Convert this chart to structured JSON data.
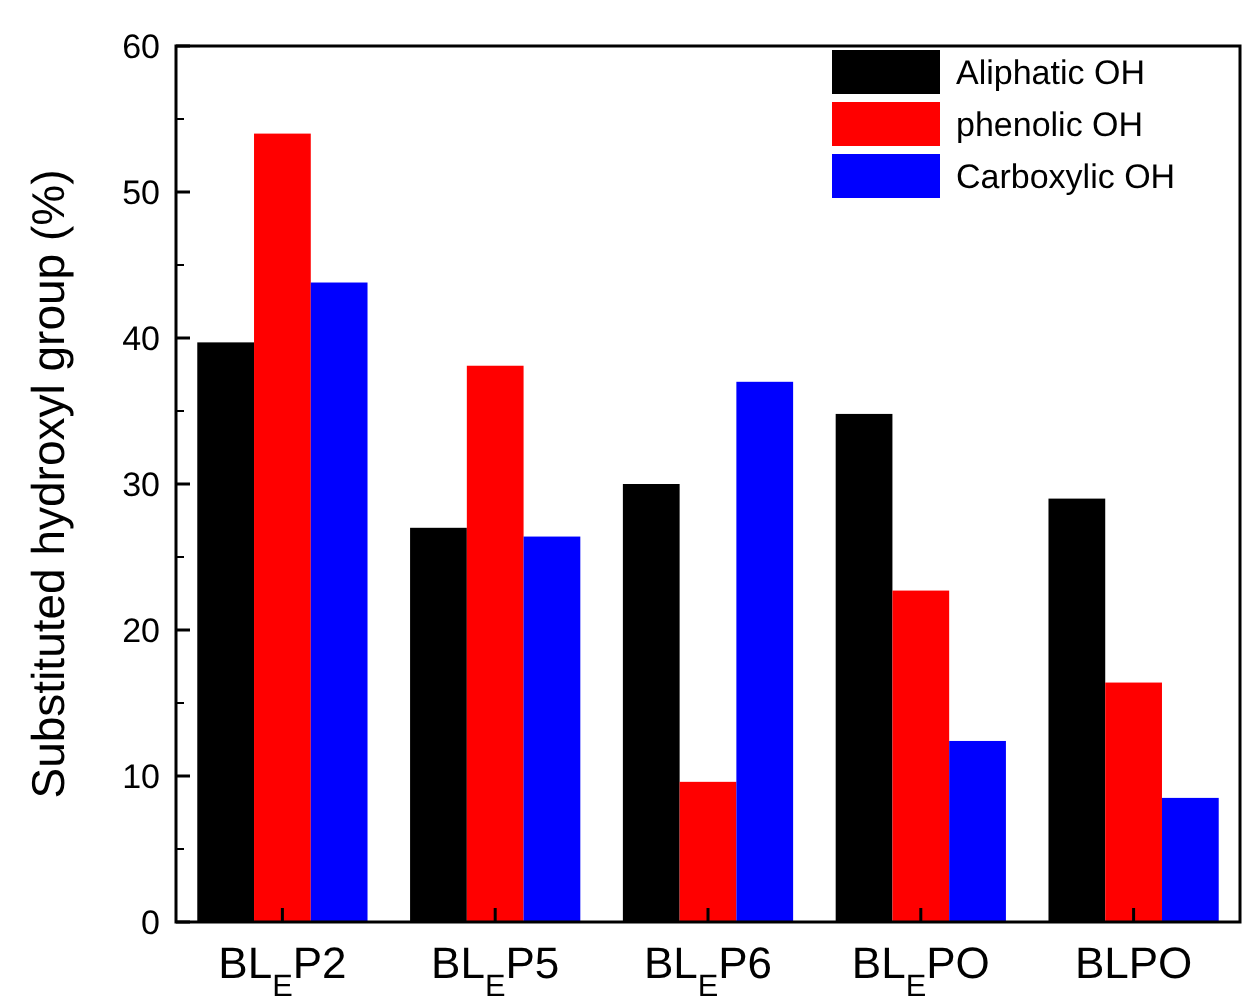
{
  "chart_data": {
    "type": "bar",
    "ylabel": "Substituted hydroxyl group (%)",
    "categories": [
      "BL$_{E}$P2",
      "BL$_{E}$P5",
      "BL$_{E}$P6",
      "BL$_{E}$PO",
      "BLPO"
    ],
    "series": [
      {
        "name": "Aliphatic OH",
        "color": "#000000",
        "values": [
          39.7,
          27,
          30,
          34.8,
          29
        ]
      },
      {
        "name": "phenolic OH",
        "color": "#ff0000",
        "values": [
          54,
          38.1,
          9.6,
          22.7,
          16.4
        ]
      },
      {
        "name": "Carboxylic OH",
        "color": "#0000ff",
        "values": [
          43.8,
          26.4,
          37,
          12.4,
          8.5
        ]
      }
    ],
    "ylim": [
      0,
      60
    ],
    "yticks": [
      0,
      10,
      20,
      30,
      40,
      50,
      60
    ],
    "legend": "top right"
  }
}
